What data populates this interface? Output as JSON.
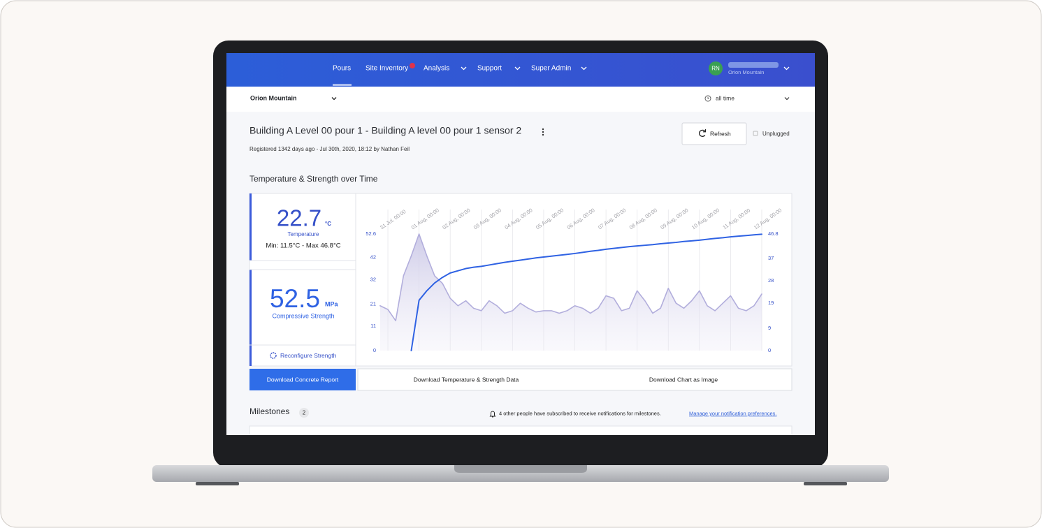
{
  "nav": {
    "items": [
      "Pours",
      "Site Inventory",
      "Analysis",
      "Support",
      "Super Admin"
    ],
    "avatar": "RN",
    "user_site": "Orion Mountain"
  },
  "toolbar": {
    "site": "Orion Mountain",
    "range": "all time"
  },
  "header": {
    "title": "Building A Level 00 pour 1 - Building A level 00 pour 1 sensor 2",
    "subtitle": "Registered 1342 days ago - Jul 30th, 2020, 18:12 by Nathan Feil",
    "refresh": "Refresh",
    "status": "Unplugged"
  },
  "section_title": "Temperature & Strength over Time",
  "stats": {
    "temperature": {
      "value": 22.7,
      "unit": "°C",
      "label": "Temperature",
      "range": "Min: 11.5°C - Max 46.8°C"
    },
    "strength": {
      "value": 52.5,
      "unit": "MPa",
      "label": "Compressive Strength"
    },
    "reconfigure": "Reconfigure Strength"
  },
  "chart_data": {
    "type": "line",
    "categories": [
      null,
      "31 Jul, 00:00",
      null,
      null,
      null,
      "01 Aug, 00:00",
      null,
      null,
      null,
      "02 Aug, 00:00",
      null,
      null,
      null,
      "03 Aug, 00:00",
      null,
      null,
      null,
      "04 Aug, 00:00",
      null,
      null,
      null,
      "05 Aug, 00:00",
      null,
      null,
      null,
      "06 Aug, 00:00",
      null,
      null,
      null,
      "07 Aug, 00:00",
      null,
      null,
      null,
      "08 Aug, 00:00",
      null,
      null,
      null,
      "09 Aug, 00:00",
      null,
      null,
      null,
      "10 Aug, 00:00",
      null,
      null,
      null,
      "11 Aug, 00:00",
      null,
      null,
      null,
      "12 Aug, 00:00"
    ],
    "series": [
      {
        "color": "#2f62e3",
        "axis": "y",
        "values": [
          null,
          null,
          null,
          null,
          0,
          22.7,
          27,
          30.5,
          33,
          35,
          36,
          37,
          37.6,
          38,
          38.6,
          39.2,
          39.8,
          40.3,
          40.8,
          41.3,
          41.8,
          42.2,
          42.6,
          43,
          43.4,
          43.8,
          44.3,
          44.8,
          45.2,
          45.7,
          46.1,
          46.5,
          46.9,
          47.2,
          47.5,
          47.8,
          48.2,
          48.5,
          48.8,
          49.2,
          49.5,
          49.8,
          50.2,
          50.6,
          50.9,
          51.3,
          51.6,
          51.9,
          52.2,
          52.5
        ]
      },
      {
        "color": "#b2aedc",
        "axis": "y2",
        "values": [
          18,
          16.5,
          12,
          30,
          38,
          46.8,
          38,
          30,
          27,
          21,
          18,
          20,
          17,
          16,
          20,
          18,
          15,
          16,
          19,
          17,
          15.5,
          16,
          16,
          15,
          16,
          18,
          17,
          15,
          17,
          22,
          21,
          16,
          17,
          24,
          20,
          15,
          17,
          25,
          19,
          17,
          20,
          24,
          18,
          16,
          19,
          22,
          17,
          16,
          18,
          22.7
        ]
      }
    ],
    "ylim": [
      0,
      52.6
    ],
    "yticks": [
      0,
      11,
      21,
      32,
      42,
      52.6
    ],
    "y2lim": [
      0,
      46.8
    ],
    "y2ticks": [
      0,
      9,
      19,
      28,
      37,
      46.8
    ],
    "grid": true
  },
  "actions": [
    "Download Concrete Report",
    "Download Temperature & Strength Data",
    "Download Chart as Image"
  ],
  "milestones": {
    "title": "Milestones",
    "count": 2,
    "notice": "4 other people have subscribed to receive notifications for milestones.",
    "link": "Manage your notification preferences."
  }
}
